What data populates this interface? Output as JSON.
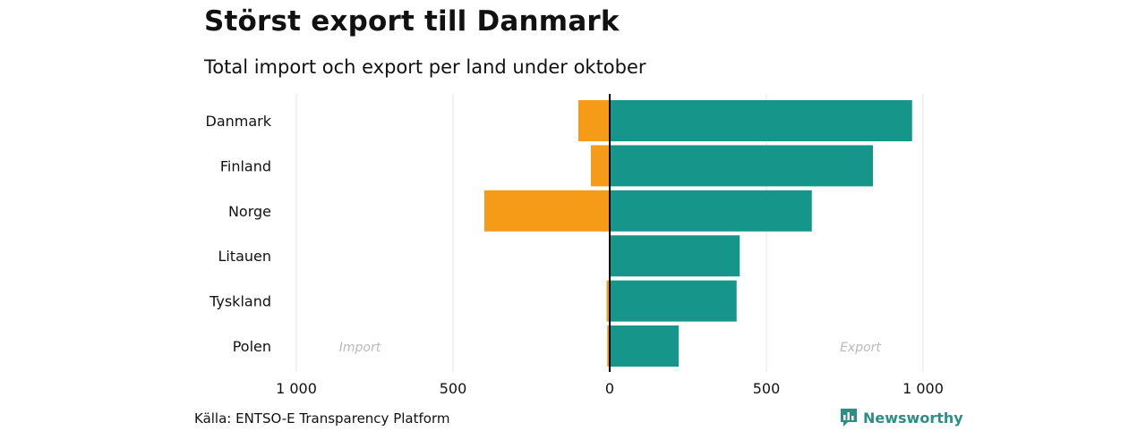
{
  "title": "Störst export till Danmark",
  "subtitle": "Total import och export per land under oktober",
  "source": "Källa: ENTSO-E Transparency Platform",
  "brand": {
    "name": "Newsworthy",
    "icon": "newsworthy-logo-icon"
  },
  "colors": {
    "import": "#f59b17",
    "export": "#16968a",
    "grid": "#e6e6e6",
    "zero_line": "#000000",
    "annotation": "#b9b9c2"
  },
  "chart_data": {
    "type": "bar",
    "orientation": "horizontal",
    "categories": [
      "Danmark",
      "Finland",
      "Norge",
      "Litauen",
      "Tyskland",
      "Polen"
    ],
    "series": [
      {
        "name": "Import",
        "values": [
          -100,
          -60,
          -400,
          0,
          -10,
          -8
        ]
      },
      {
        "name": "Export",
        "values": [
          965,
          840,
          645,
          415,
          405,
          220
        ]
      }
    ],
    "xlim": [
      -1000,
      1000
    ],
    "x_ticks": [
      -1000,
      -500,
      0,
      500,
      1000
    ],
    "x_tick_labels": [
      "1 000",
      "500",
      "0",
      "500",
      "1 000"
    ],
    "annotations": [
      "Import",
      "Export"
    ],
    "grid": true,
    "legend": "none"
  }
}
